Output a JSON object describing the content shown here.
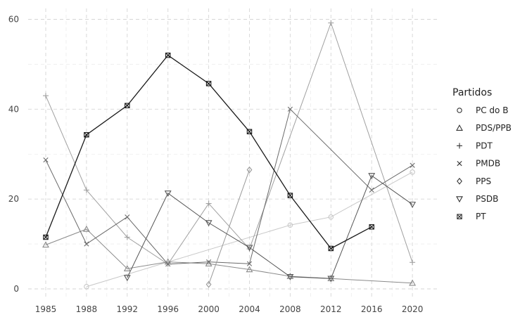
{
  "chart_data": {
    "type": "line",
    "title": "",
    "xlabel": "",
    "ylabel": "",
    "x": [
      1985,
      1988,
      1992,
      1996,
      2000,
      2004,
      2008,
      2012,
      2016,
      2020
    ],
    "xlim": [
      1985,
      2020
    ],
    "ylim": [
      0,
      60
    ],
    "y_ticks": [
      0,
      20,
      40,
      60
    ],
    "grid": true,
    "legend": {
      "title": "Partidos",
      "placement": "right"
    },
    "series": [
      {
        "name": "PC do B",
        "marker": "circle",
        "color": "#c8c8c8",
        "points": [
          [
            1988,
            0.5
          ],
          [
            2008,
            14.2
          ],
          [
            2012,
            16
          ],
          [
            2020,
            26
          ]
        ]
      },
      {
        "name": "PDS/PPB",
        "marker": "triangle-up",
        "color": "#8a8a8a",
        "points": [
          [
            1985,
            9.8
          ],
          [
            1988,
            13.3
          ],
          [
            1992,
            4.5
          ],
          [
            1996,
            6
          ],
          [
            2000,
            5.6
          ],
          [
            2004,
            4.3
          ],
          [
            2008,
            2.8
          ],
          [
            2012,
            2.3
          ],
          [
            2020,
            1.3
          ]
        ]
      },
      {
        "name": "PDT",
        "marker": "plus",
        "color": "#a0a0a0",
        "points": [
          [
            1985,
            43
          ],
          [
            1988,
            22
          ],
          [
            1992,
            11.5
          ],
          [
            1996,
            5.5
          ],
          [
            2000,
            19
          ],
          [
            2004,
            8.9
          ],
          [
            2012,
            59.2
          ],
          [
            2020,
            5.9
          ]
        ]
      },
      {
        "name": "PMDB",
        "marker": "cross",
        "color": "#6a6a6a",
        "points": [
          [
            1985,
            28.7
          ],
          [
            1988,
            10
          ],
          [
            1992,
            16
          ],
          [
            1996,
            5.5
          ],
          [
            2000,
            6
          ],
          [
            2004,
            5.6
          ],
          [
            2008,
            40
          ],
          [
            2016,
            22
          ],
          [
            2020,
            27.5
          ]
        ]
      },
      {
        "name": "PPS",
        "marker": "diamond",
        "color": "#9a9a9a",
        "points": [
          [
            2000,
            1
          ],
          [
            2004,
            26.5
          ]
        ]
      },
      {
        "name": "PSDB",
        "marker": "triangle-down",
        "color": "#555555",
        "points": [
          [
            1992,
            2.5
          ],
          [
            1996,
            21.3
          ],
          [
            2000,
            14.7
          ],
          [
            2004,
            9.2
          ],
          [
            2008,
            2.7
          ],
          [
            2012,
            2.3
          ],
          [
            2016,
            25.2
          ],
          [
            2020,
            18.8
          ]
        ]
      },
      {
        "name": "PT",
        "marker": "square",
        "color": "#1a1a1a",
        "points": [
          [
            1985,
            11.5
          ],
          [
            1988,
            34.3
          ],
          [
            1992,
            40.8
          ],
          [
            1996,
            52
          ],
          [
            2000,
            45.7
          ],
          [
            2004,
            35
          ],
          [
            2008,
            20.8
          ],
          [
            2012,
            9
          ],
          [
            2016,
            13.8
          ]
        ]
      }
    ]
  }
}
